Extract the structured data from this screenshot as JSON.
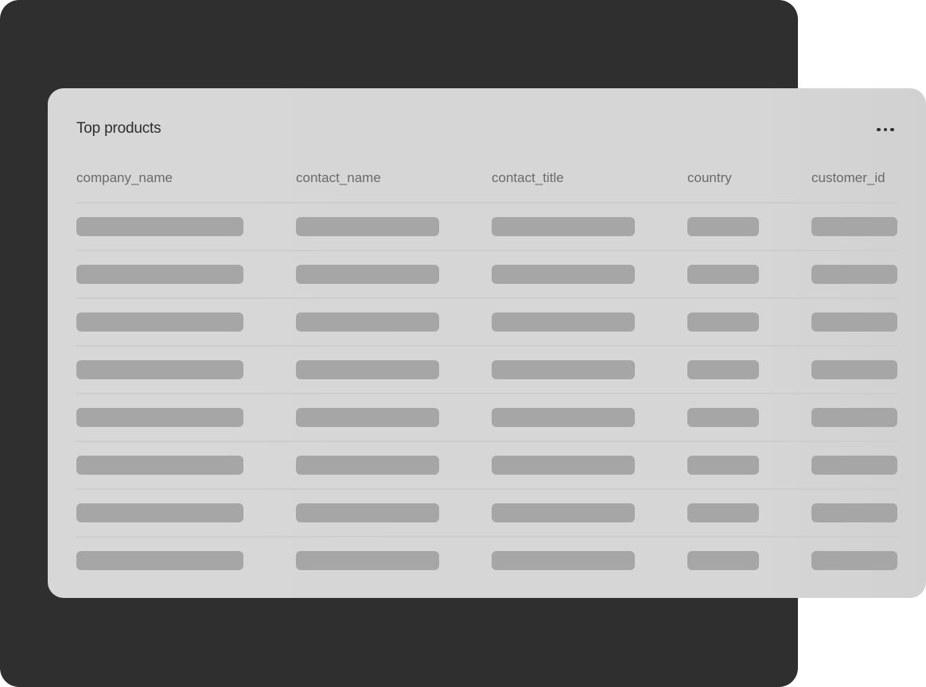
{
  "card": {
    "title": "Top products",
    "more_icon": "more-horizontal-icon",
    "columns": [
      "company_name",
      "contact_name",
      "contact_title",
      "country",
      "customer_id"
    ]
  },
  "colors": {
    "background_panel": "#2f2f2f",
    "card": "#d6d6d6",
    "skeleton": "#a6a6a6"
  }
}
